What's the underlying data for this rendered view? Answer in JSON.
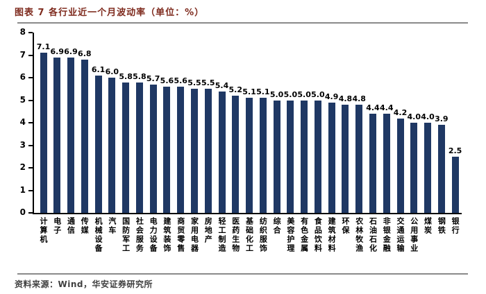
{
  "title": "图表 7  各行业近一个月波动率（单位：%）",
  "footer": {
    "source_label": "资料来源：Wind，华安证券研究所"
  },
  "colors": {
    "bar": "#1F3864",
    "title_text": "#7E2A1D",
    "axis": "#000000",
    "rule": "#8a8a8a",
    "footer_text": "#3f3f3f"
  },
  "chart_data": {
    "type": "bar",
    "title": "各行业近一个月波动率",
    "unit": "%",
    "categories": [
      "计算机",
      "电子",
      "通信",
      "传媒",
      "机械设备",
      "汽车",
      "国防军工",
      "社会服务",
      "电力设备",
      "建筑装饰",
      "商贸零售",
      "家用电器",
      "房地产",
      "轻工制造",
      "医药生物",
      "基础化工",
      "纺织服饰",
      "综合",
      "美容护理",
      "有色金属",
      "食品饮料",
      "建筑材料",
      "环保",
      "农林牧渔",
      "石油石化",
      "非银金融",
      "交通运输",
      "公用事业",
      "煤炭",
      "钢铁",
      "银行"
    ],
    "values": [
      7.1,
      6.9,
      6.9,
      6.8,
      6.1,
      6.0,
      5.8,
      5.8,
      5.7,
      5.6,
      5.6,
      5.5,
      5.5,
      5.4,
      5.2,
      5.1,
      5.1,
      5.0,
      5.0,
      5.0,
      5.0,
      4.9,
      4.8,
      4.8,
      4.4,
      4.4,
      4.2,
      4.0,
      4.0,
      3.9,
      2.5
    ],
    "ylim": [
      0,
      8
    ],
    "yticks": [
      0,
      1,
      2,
      3,
      4,
      5,
      6,
      7,
      8
    ],
    "grid": false,
    "legend": null,
    "value_labels": true
  }
}
